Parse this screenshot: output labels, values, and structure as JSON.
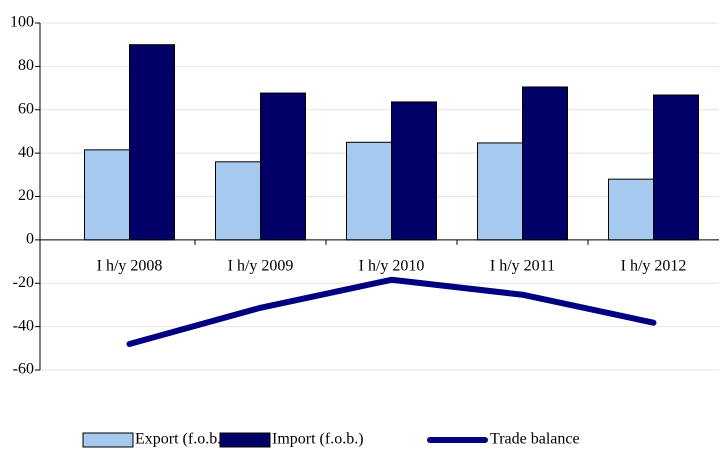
{
  "chart_data": {
    "type": "bar",
    "categories": [
      "I h/y 2008",
      "I h/y 2009",
      "I h/y 2010",
      "I h/y 2011",
      "I h/y 2012"
    ],
    "series": [
      {
        "name": "Export (f.o.b.)",
        "type": "bar",
        "color": "#a6c9f0",
        "values": [
          41.5,
          36,
          45,
          44.7,
          28
        ]
      },
      {
        "name": "Import (f.o.b.)",
        "type": "bar",
        "color": "#000066",
        "values": [
          90,
          67.7,
          63.6,
          70.5,
          66.8
        ]
      },
      {
        "name": "Trade balance",
        "type": "line",
        "color": "#000080",
        "values": [
          -48,
          -31.3,
          -18.4,
          -25.3,
          -38.2
        ]
      }
    ],
    "ylim": [
      -60,
      100
    ],
    "yticks": [
      -60,
      -40,
      -20,
      0,
      20,
      40,
      60,
      80,
      100
    ],
    "grid": true,
    "legend": "bottom"
  }
}
